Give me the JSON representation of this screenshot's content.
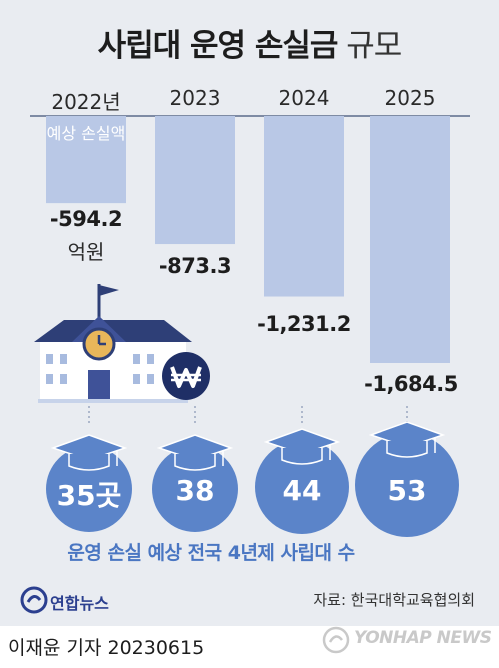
{
  "header": {
    "title_strong": "사립대 운영 손실금",
    "title_light": "규모"
  },
  "chart_data": {
    "type": "bar",
    "categories": [
      "2022년",
      "2023",
      "2024",
      "2025"
    ],
    "values": [
      -594.2,
      -873.3,
      -1231.2,
      -1684.5
    ],
    "value_labels": [
      "-594.2",
      "-873.3",
      "-1,231.2",
      "-1,684.5"
    ],
    "unit": "억원",
    "bar_annotation": "예상 손실액",
    "ylim": [
      -1684.5,
      0
    ],
    "bar_color": "#b9c8e6"
  },
  "universities": {
    "counts": [
      "35곳",
      "38",
      "44",
      "53"
    ],
    "caption": "운영 손실 예상 전국 4년제 사립대 수"
  },
  "footer": {
    "source": "자료: 한국대학교육협의회",
    "byline": "이재윤 기자  20230615",
    "logo": "연합뉴스",
    "watermark": "YONHAP NEWS"
  },
  "icons": {
    "school": "school-building-icon",
    "won": "won-sign-icon",
    "cap": "graduation-cap-icon"
  },
  "colors": {
    "accent": "#4a76c2",
    "circle": "#5b84c9",
    "bar": "#b9c8e6",
    "background": "#e9ecf1"
  }
}
